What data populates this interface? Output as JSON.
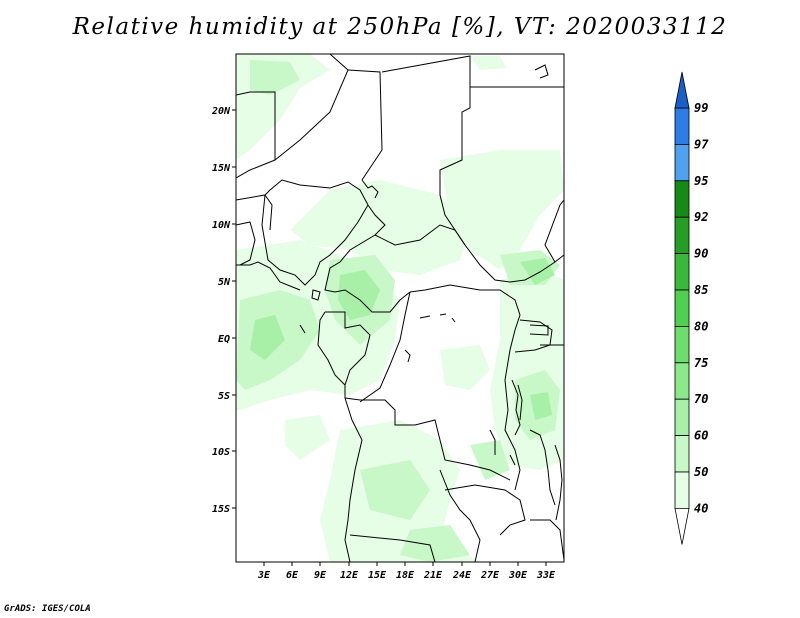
{
  "title": "Relative humidity at 250hPa [%], VT: 2020033112",
  "credit": "GrADS: IGES/COLA",
  "map": {
    "lat_ticks": [
      "20N",
      "15N",
      "10N",
      "5N",
      "EQ",
      "5S",
      "10S",
      "15S"
    ],
    "lon_ticks": [
      "3E",
      "6E",
      "9E",
      "12E",
      "15E",
      "18E",
      "21E",
      "24E",
      "27E",
      "30E",
      "33E"
    ],
    "colors": {
      "frame": "#000000",
      "border": "#000000"
    }
  },
  "colorbar": {
    "labels": [
      "40",
      "50",
      "60",
      "70",
      "75",
      "80",
      "85",
      "90",
      "92",
      "95",
      "97",
      "99"
    ],
    "colors": [
      "#ffffff",
      "#e6fde6",
      "#c8f7c8",
      "#a8f0a8",
      "#8be88b",
      "#6ddd6d",
      "#50d050",
      "#3ab83a",
      "#269e26",
      "#158a15",
      "#4fa2f0",
      "#2c7ee6",
      "#1a5ec8"
    ]
  }
}
